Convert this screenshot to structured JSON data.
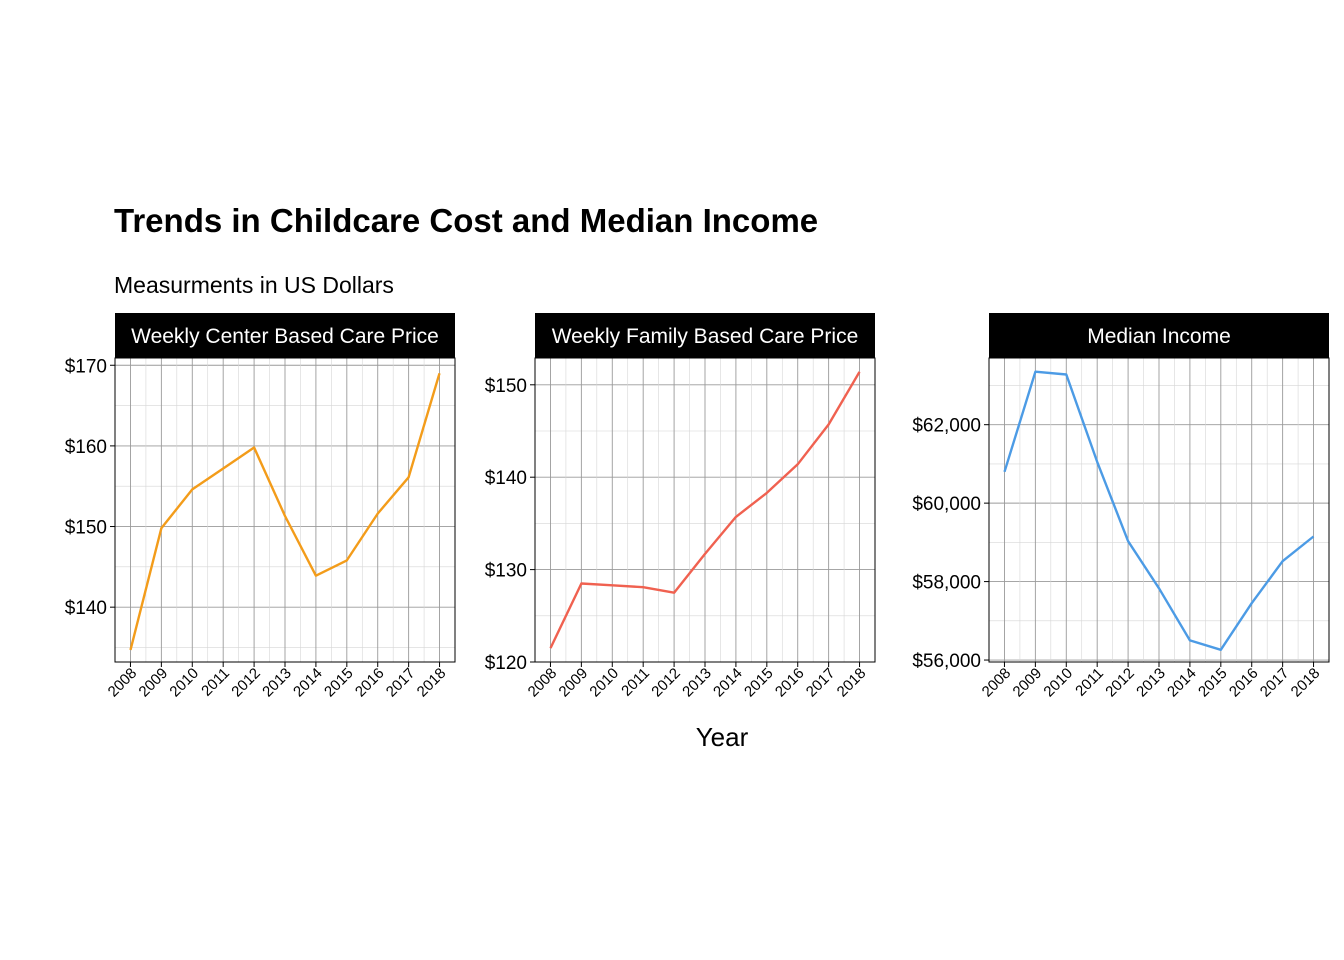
{
  "chart_data": {
    "title": "Trends in Childcare Cost and Median Income",
    "subtitle": "Measurments in US Dollars",
    "xlabel": "Year",
    "panels": [
      {
        "type": "line",
        "strip": "Weekly Center Based Care Price",
        "color": "#F39C1A",
        "x": [
          2008,
          2009,
          2010,
          2011,
          2012,
          2013,
          2014,
          2015,
          2016,
          2017,
          2018
        ],
        "values": [
          134.7,
          149.8,
          154.6,
          157.2,
          159.8,
          151.3,
          143.9,
          145.8,
          151.6,
          156.1,
          169.0
        ],
        "ylim": [
          133.2,
          170.9
        ],
        "yticks": [
          140,
          150,
          160,
          170
        ],
        "ytick_labels": [
          "$140",
          "$150",
          "$160",
          "$170"
        ],
        "grid": true
      },
      {
        "type": "line",
        "strip": "Weekly Family Based Care Price",
        "color": "#F06150",
        "x": [
          2008,
          2009,
          2010,
          2011,
          2012,
          2013,
          2014,
          2015,
          2016,
          2017,
          2018
        ],
        "values": [
          121.5,
          128.5,
          128.3,
          128.1,
          127.5,
          131.7,
          135.7,
          138.3,
          141.4,
          145.7,
          151.4
        ],
        "ylim": [
          120.0,
          152.9
        ],
        "yticks": [
          120,
          130,
          140,
          150
        ],
        "ytick_labels": [
          "$120",
          "$130",
          "$140",
          "$150"
        ],
        "grid": true
      },
      {
        "type": "line",
        "strip": "Median Income",
        "color": "#4C9BE5",
        "x": [
          2008,
          2009,
          2010,
          2011,
          2012,
          2013,
          2014,
          2015,
          2016,
          2017,
          2018
        ],
        "values": [
          60800,
          63350,
          63280,
          61050,
          59030,
          57830,
          56500,
          56260,
          57450,
          58520,
          59150
        ],
        "ylim": [
          55950,
          63700
        ],
        "yticks": [
          56000,
          58000,
          60000,
          62000
        ],
        "ytick_labels": [
          "$56,000",
          "$58,000",
          "$60,000",
          "$62,000"
        ],
        "grid": true
      }
    ]
  }
}
